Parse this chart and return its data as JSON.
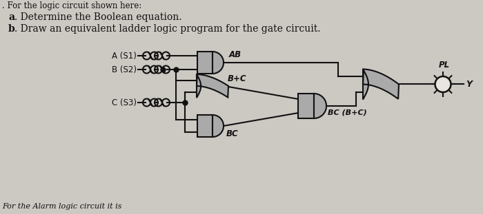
{
  "bg_color": "#ccc8c2",
  "text_color": "#111111",
  "title_line1": ". For the logic circuit shown here:",
  "title_line2a": "a",
  "title_line2b": ". Determine the Boolean equation.",
  "title_line3a": "b",
  "title_line3b": ". Draw an equivalent ladder logic program for the gate circuit.",
  "footer": "For the Alarm logic circuit it is",
  "label_A": "A (S1)",
  "label_B": "B (S2)",
  "label_C": "C (S3)",
  "label_AB": "AB",
  "label_BpC": "B+C",
  "label_BC": "BC",
  "label_BC_BpC": "BC (B+C)",
  "label_PL": "PL",
  "label_Y": "Y",
  "gate_fill": "#aaaaaa",
  "gate_edge": "#111111",
  "wire_color": "#111111",
  "lamp_color": "#111111",
  "paper_color": "#dedad5"
}
